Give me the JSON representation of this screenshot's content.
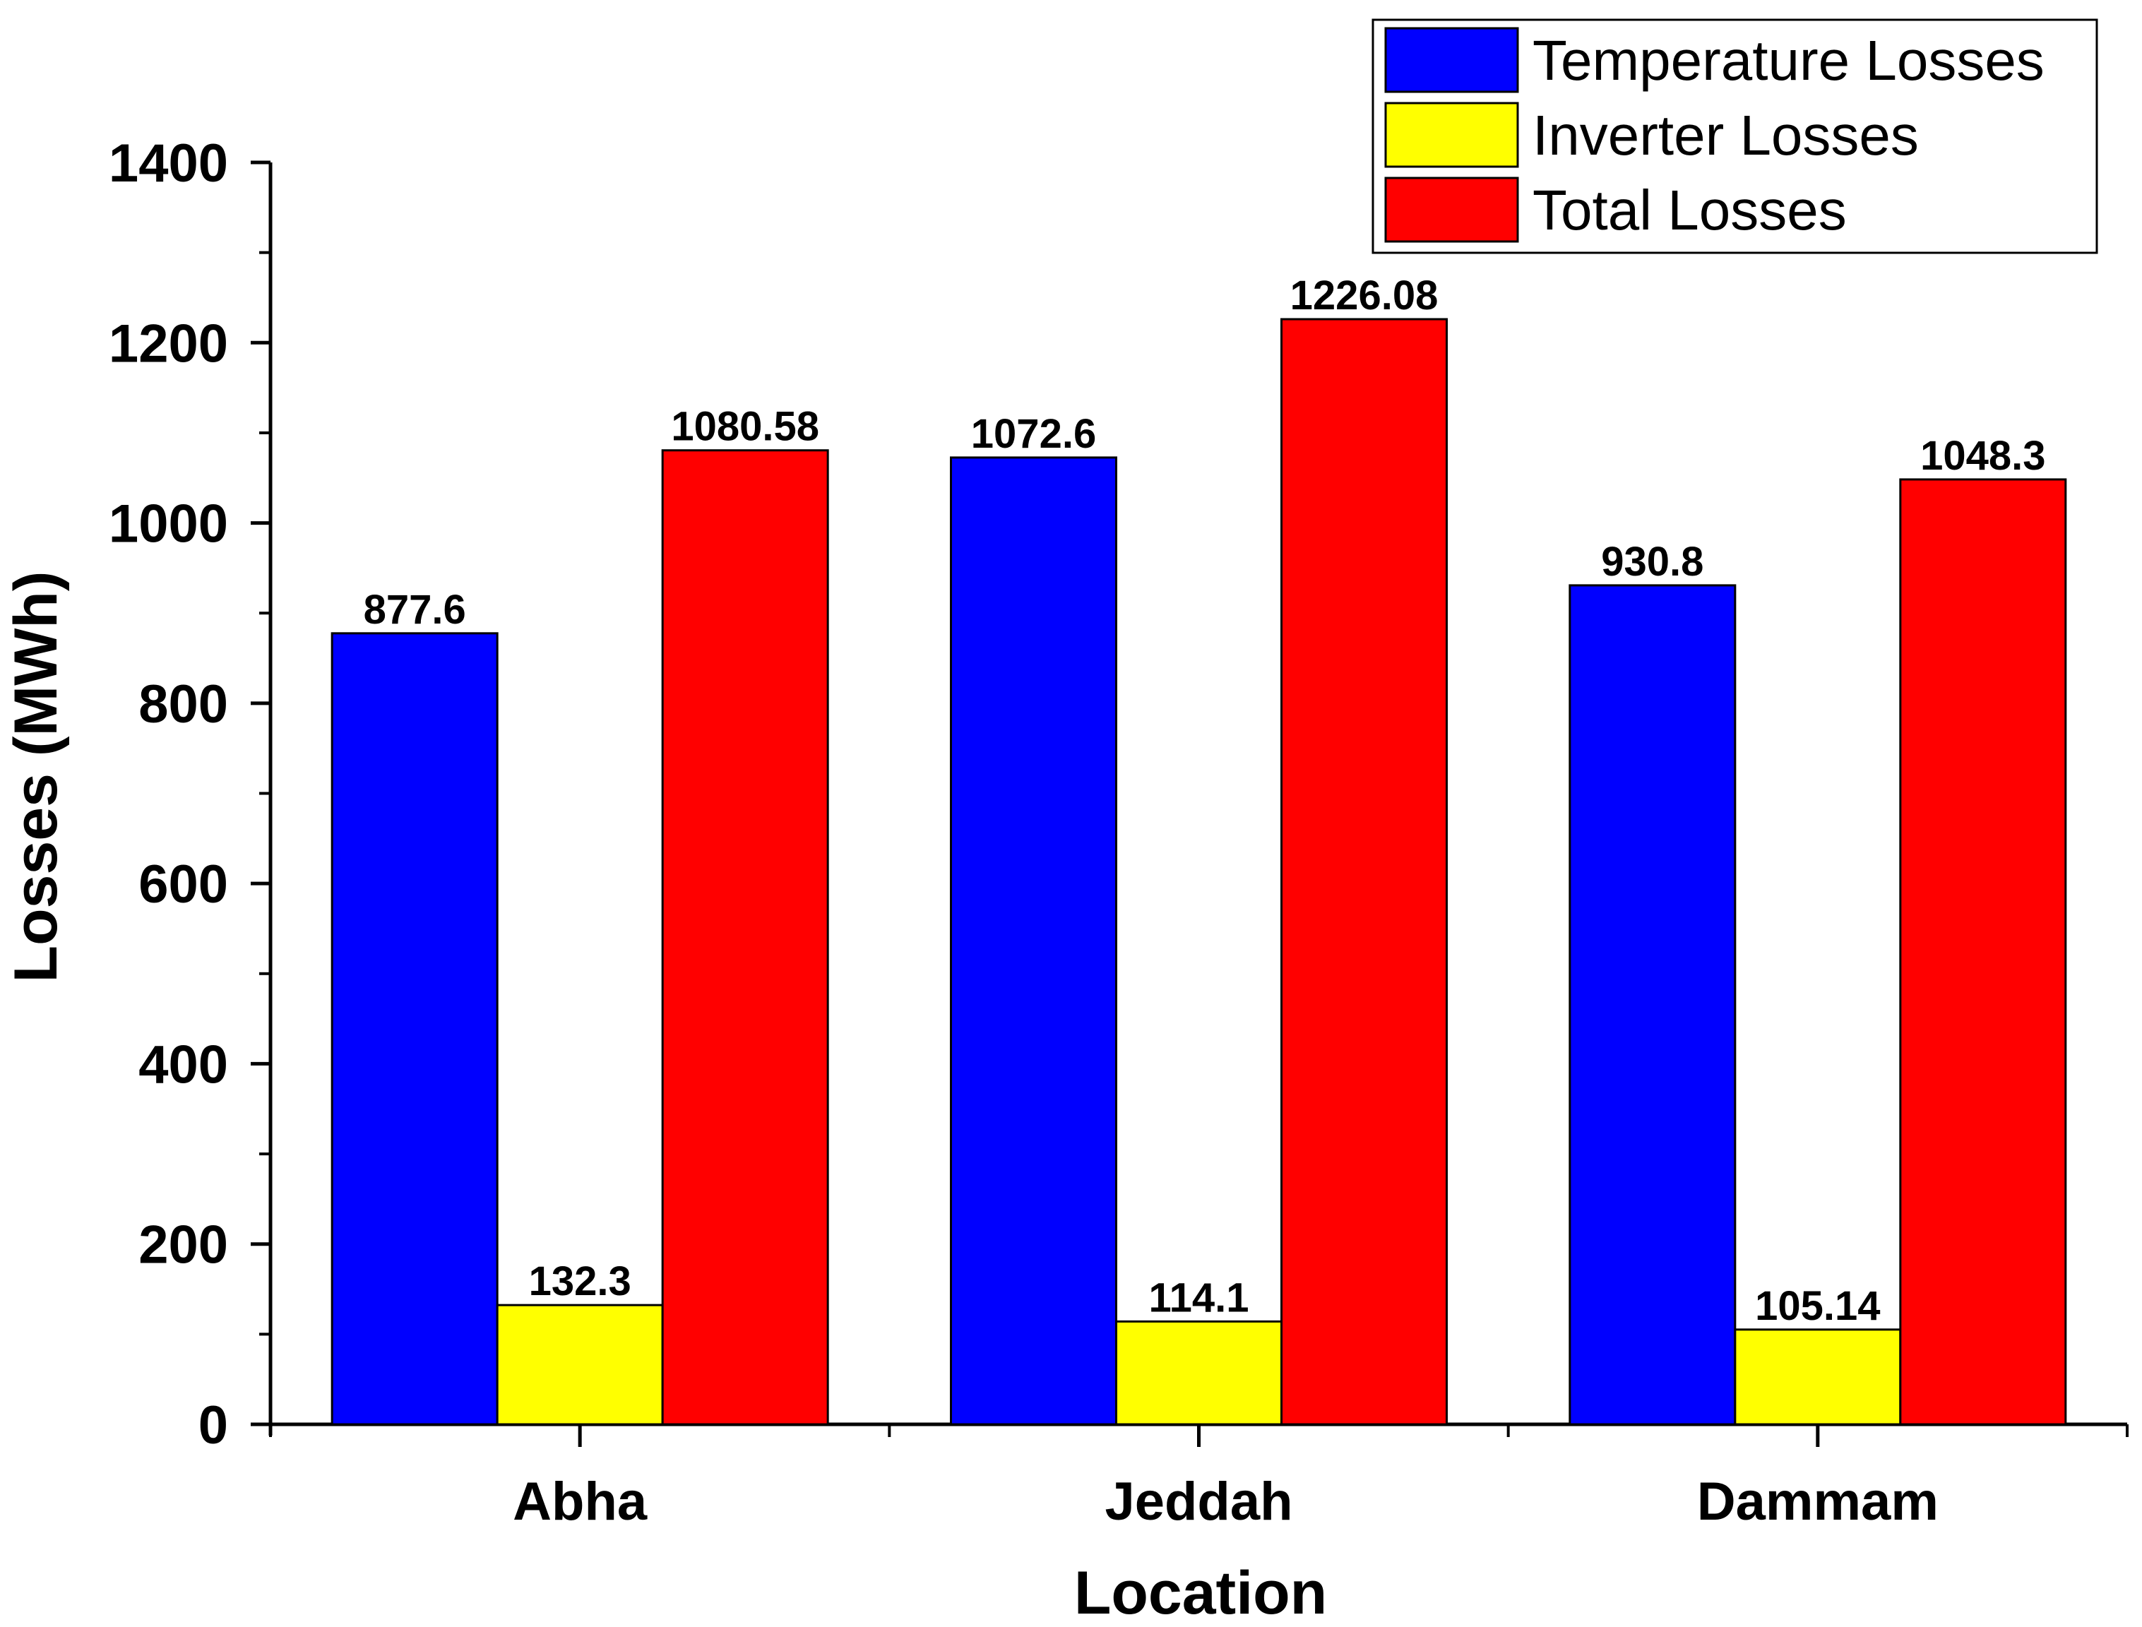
{
  "chart_data": {
    "type": "bar",
    "title": "",
    "xlabel": "Location",
    "ylabel": "Losses (MWh)",
    "categories": [
      "Abha",
      "Jeddah",
      "Dammam"
    ],
    "ylim": [
      0,
      1400
    ],
    "yticks": [
      0,
      200,
      400,
      600,
      800,
      1000,
      1200,
      1400
    ],
    "ytick_labels": [
      "0",
      "200",
      "400",
      "600",
      "800",
      "1000",
      "1200",
      "1400"
    ],
    "grid": false,
    "legend_position": "top-right",
    "series": [
      {
        "name": "Temperature Losses",
        "color": "#0000ff",
        "values": [
          877.6,
          1072.6,
          930.8
        ],
        "labels": [
          "877.6",
          "1072.6",
          "930.8"
        ]
      },
      {
        "name": "Inverter Losses",
        "color": "#ffff00",
        "values": [
          132.3,
          114.1,
          105.14
        ],
        "labels": [
          "132.3",
          "114.1",
          "105.14"
        ]
      },
      {
        "name": "Total Losses",
        "color": "#ff0000",
        "values": [
          1080.58,
          1226.08,
          1048.3
        ],
        "labels": [
          "1080.58",
          "1226.08",
          "1048.3"
        ]
      }
    ]
  }
}
